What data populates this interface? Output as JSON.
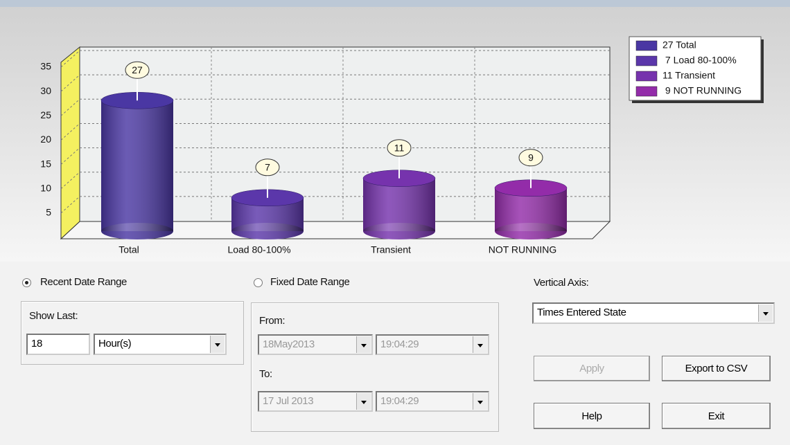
{
  "chart_data": {
    "type": "bar",
    "categories": [
      "Total",
      "Load 80-100%",
      "Transient",
      "NOT RUNNING"
    ],
    "values": [
      27,
      7,
      11,
      9
    ],
    "colors": [
      "#4a37a3",
      "#5b37aa",
      "#7633ad",
      "#932ca9"
    ],
    "ylim": [
      0,
      36
    ],
    "yticks": [
      5,
      10,
      15,
      20,
      25,
      30,
      35
    ],
    "grid": true,
    "legend": {
      "position": "top-right",
      "labels": [
        "27 Total",
        " 7 Load 80-100%",
        "11 Transient",
        " 9 NOT RUNNING"
      ]
    }
  },
  "controls": {
    "recent_range": {
      "label": "Recent Date Range",
      "selected": true
    },
    "show_last": {
      "label": "Show Last:",
      "value": "18",
      "unit": "Hour(s)"
    },
    "fixed_range": {
      "label": "Fixed Date Range",
      "selected": false
    },
    "from": {
      "label": "From:",
      "date": "18May2013",
      "time": "19:04:29"
    },
    "to": {
      "label": "To:",
      "date": "17 Jul 2013",
      "time": "19:04:29"
    },
    "vertical_axis": {
      "label": "Vertical Axis:",
      "value": "Times Entered State"
    },
    "buttons": [
      {
        "label": "Apply",
        "enabled": false
      },
      {
        "label": "Export to CSV",
        "enabled": true
      },
      {
        "label": "Help",
        "enabled": true
      },
      {
        "label": "Exit",
        "enabled": true
      }
    ]
  }
}
